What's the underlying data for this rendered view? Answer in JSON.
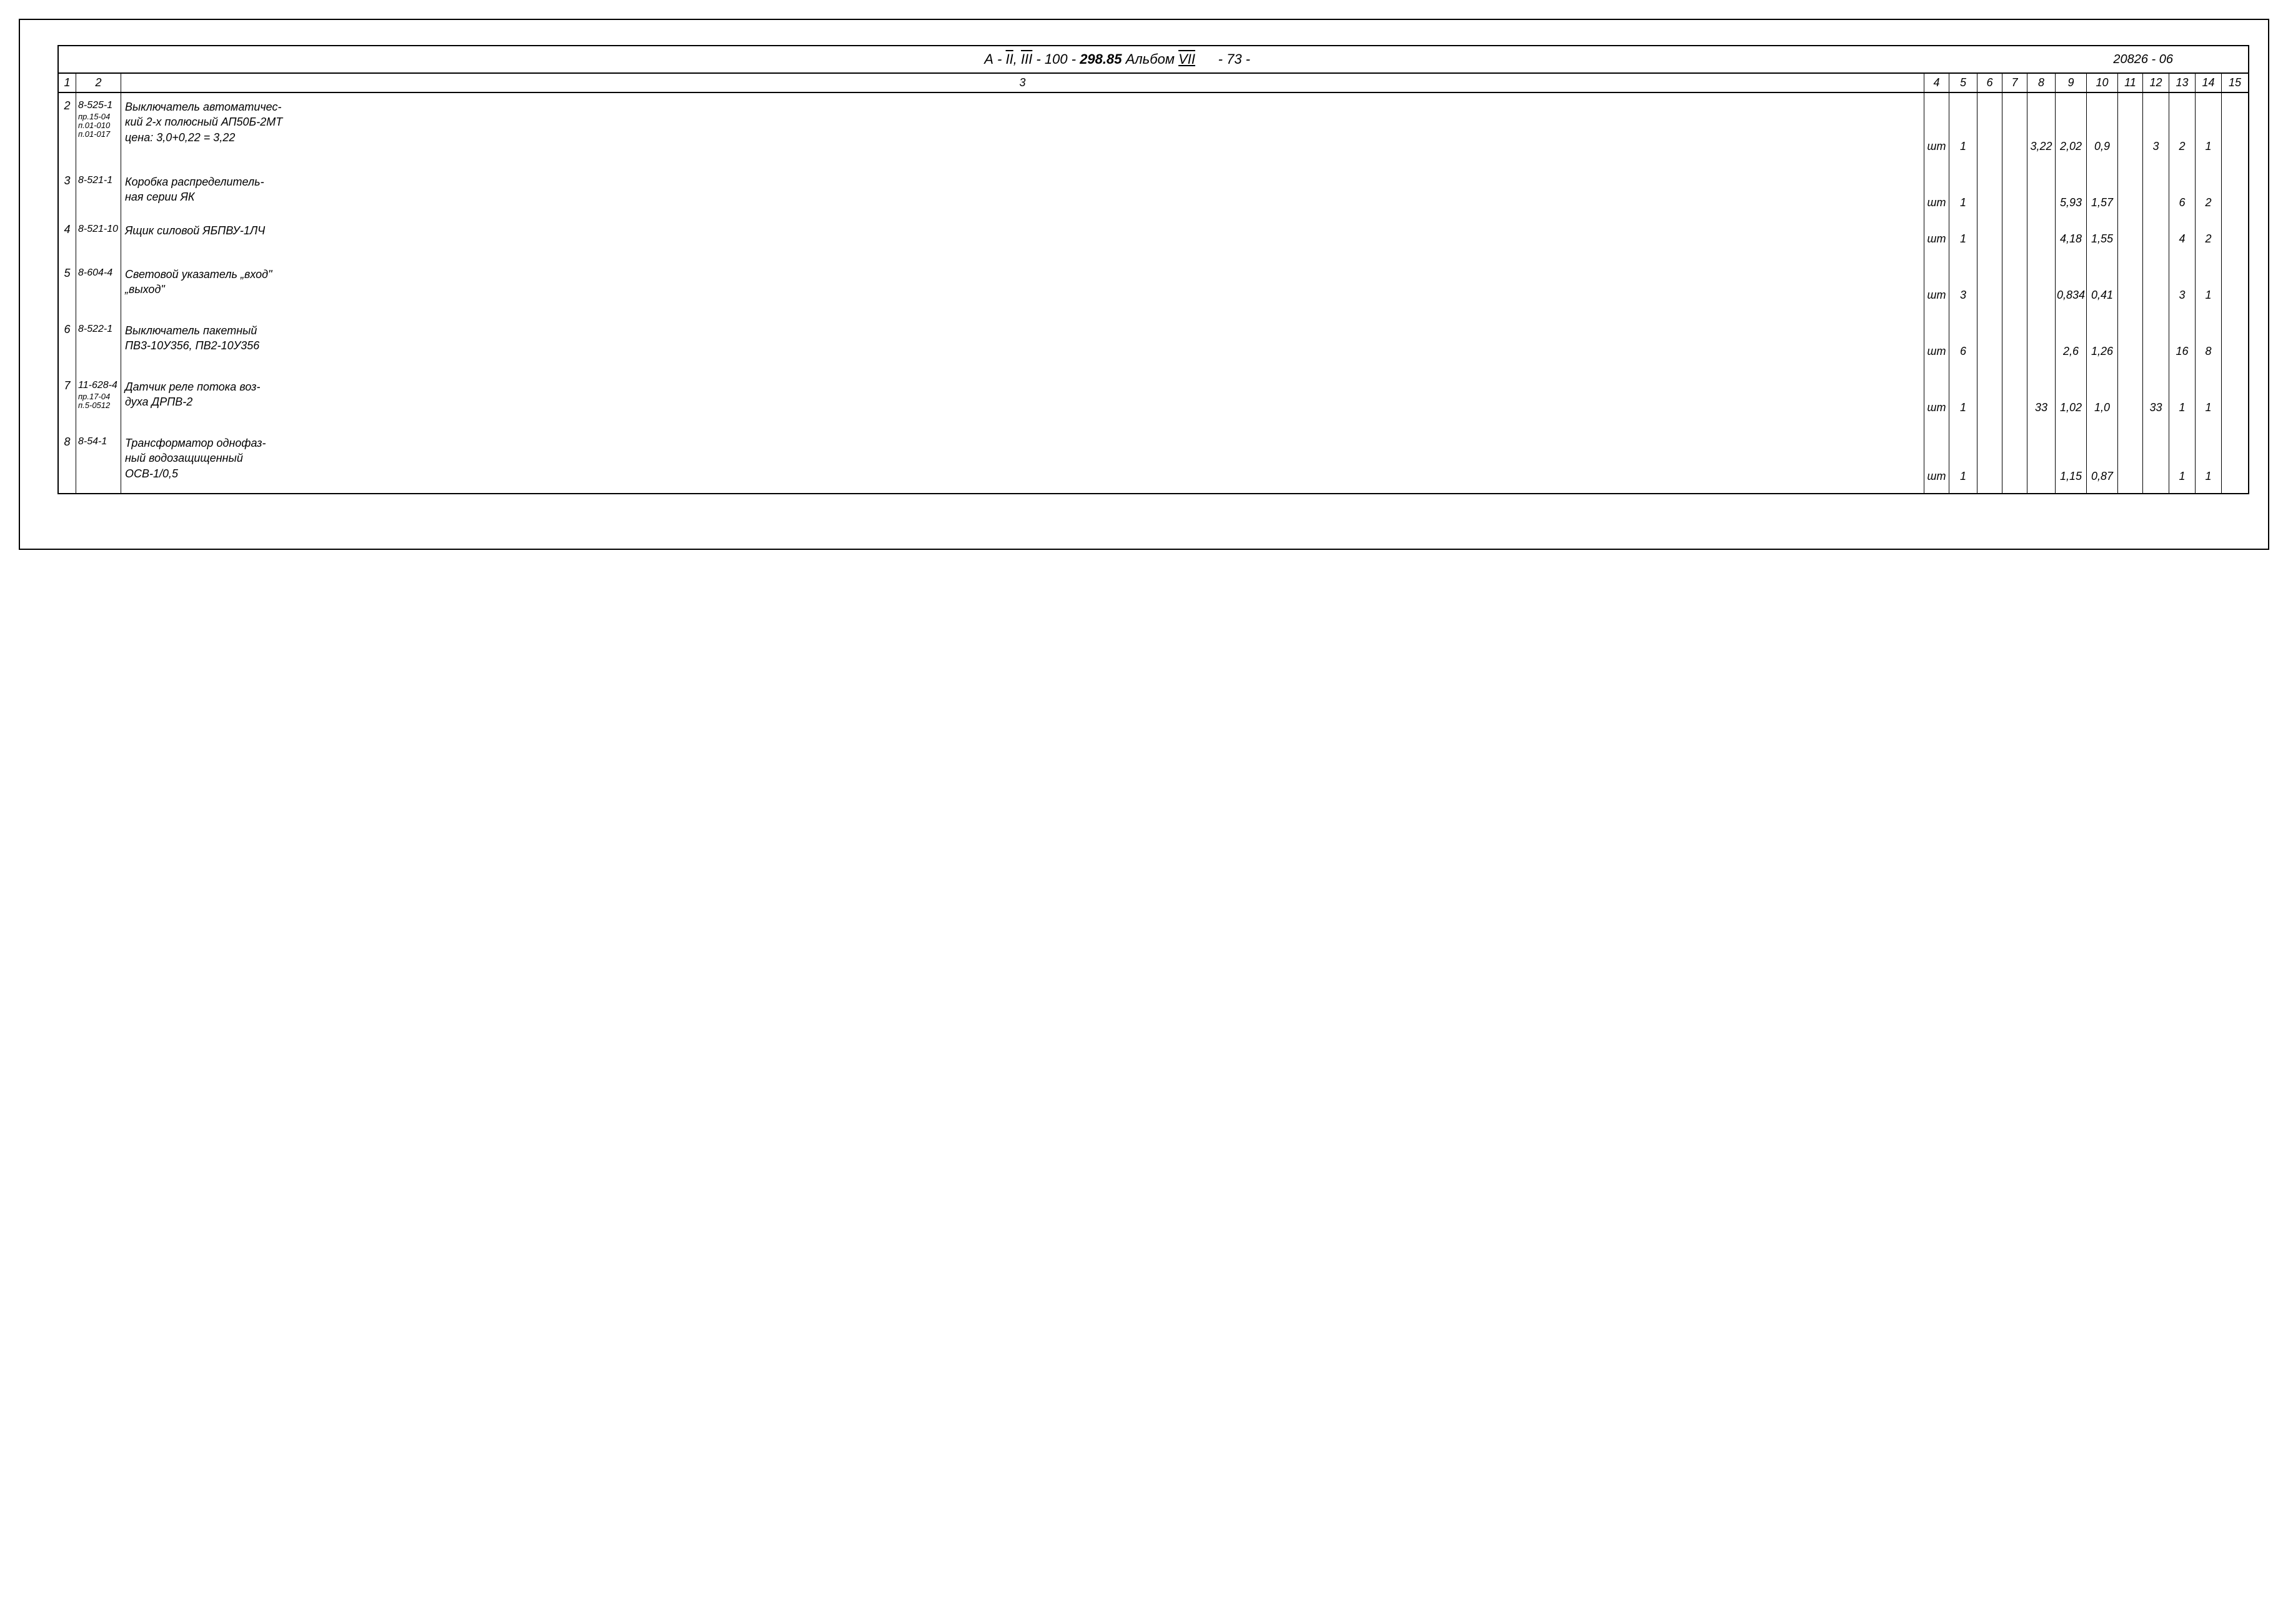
{
  "header": {
    "title_prefix": "А - ",
    "title_roman1": "II",
    "title_sep": ", ",
    "title_roman2": "III",
    "title_mid": " - 100 - ",
    "title_bold": "298.85",
    "title_album": " Альбом ",
    "title_roman3": "VII",
    "page_num": "- 73 -",
    "doc_code": "20826 - 06"
  },
  "columns": [
    "1",
    "2",
    "3",
    "4",
    "5",
    "6",
    "7",
    "8",
    "9",
    "10",
    "11",
    "12",
    "13",
    "14",
    "15"
  ],
  "rows": [
    {
      "c1": "2",
      "c2_main": "8-525-1",
      "c2_notes": [
        "пр.15-04",
        "п.01-010",
        "п.01-017"
      ],
      "c3": "Выключатель автоматичес-\nкий 2-х полюсный АП50Б-2МТ\nцена: 3,0+0,22 = 3,22",
      "c4": "шт",
      "c5": "1",
      "c6": "",
      "c7": "",
      "c8": "3,22",
      "c9": "2,02",
      "c10": "0,9",
      "c11": "",
      "c12": "3",
      "c13": "2",
      "c14": "1",
      "c15": ""
    },
    {
      "c1": "3",
      "c2_main": "8-521-1",
      "c2_notes": [],
      "c3": "Коробка распределитель-\nная серии ЯК",
      "c4": "шт",
      "c5": "1",
      "c6": "",
      "c7": "",
      "c8": "",
      "c9": "5,93",
      "c10": "1,57",
      "c11": "",
      "c12": "",
      "c13": "6",
      "c14": "2",
      "c15": ""
    },
    {
      "c1": "4",
      "c2_main": "8-521-10",
      "c2_notes": [],
      "c3": "Ящик силовой ЯБПВУ-1ЛЧ",
      "c4": "шт",
      "c5": "1",
      "c6": "",
      "c7": "",
      "c8": "",
      "c9": "4,18",
      "c10": "1,55",
      "c11": "",
      "c12": "",
      "c13": "4",
      "c14": "2",
      "c15": ""
    },
    {
      "c1": "5",
      "c2_main": "8-604-4",
      "c2_notes": [],
      "c3": "Световой указатель „вход\"\n„выход\"",
      "c4": "шт",
      "c5": "3",
      "c6": "",
      "c7": "",
      "c8": "",
      "c9": "0,834",
      "c10": "0,41",
      "c11": "",
      "c12": "",
      "c13": "3",
      "c14": "1",
      "c15": ""
    },
    {
      "c1": "6",
      "c2_main": "8-522-1",
      "c2_notes": [],
      "c3": "Выключатель пакетный\nПВ3-10У356, ПВ2-10У356",
      "c4": "шт",
      "c5": "6",
      "c6": "",
      "c7": "",
      "c8": "",
      "c9": "2,6",
      "c10": "1,26",
      "c11": "",
      "c12": "",
      "c13": "16",
      "c14": "8",
      "c15": ""
    },
    {
      "c1": "7",
      "c2_main": "11-628-4",
      "c2_notes": [
        "пр.17-04",
        "п.5-0512"
      ],
      "c3": "Датчик реле потока воз-\nдуха ДРПВ-2",
      "c4": "шт",
      "c5": "1",
      "c6": "",
      "c7": "",
      "c8": "33",
      "c9": "1,02",
      "c10": "1,0",
      "c11": "",
      "c12": "33",
      "c13": "1",
      "c14": "1",
      "c15": ""
    },
    {
      "c1": "8",
      "c2_main": "8-54-1",
      "c2_notes": [],
      "c3": "Трансформатор однофаз-\nный водозащищенный\nОСВ-1/0,5",
      "c4": "шт",
      "c5": "1",
      "c6": "",
      "c7": "",
      "c8": "",
      "c9": "1,15",
      "c10": "0,87",
      "c11": "",
      "c12": "",
      "c13": "1",
      "c14": "1",
      "c15": ""
    }
  ]
}
